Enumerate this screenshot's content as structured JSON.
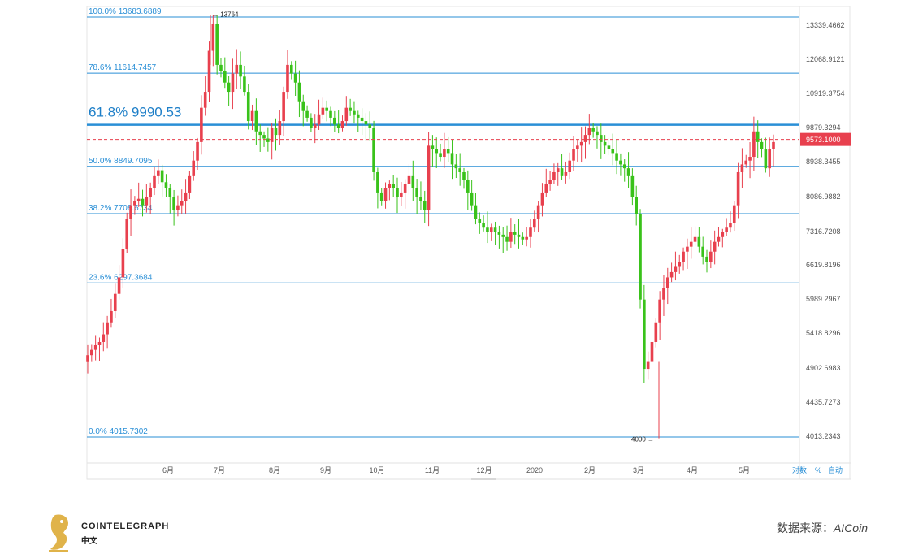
{
  "chart_data": {
    "type": "candlestick",
    "x_labels": [
      "6月",
      "7月",
      "8月",
      "9月",
      "10月",
      "11月",
      "12月",
      "2020",
      "2月",
      "3月",
      "4月",
      "5月"
    ],
    "y_ticks": [
      "13339.4662",
      "12068.9121",
      "10919.3754",
      "9879.3294",
      "8938.3455",
      "8086.9882",
      "7316.7208",
      "6619.8196",
      "5989.2967",
      "5418.8296",
      "4902.6983",
      "4435.7273",
      "4013.2343"
    ],
    "ylim": [
      3800,
      14500
    ],
    "current_price": "9573.1000",
    "current_price_value": 9573.1,
    "fib_levels": [
      {
        "label": "100.0% 13683.6889",
        "value": 13683.6889
      },
      {
        "label": "78.6% 11614.7457",
        "value": 11614.7457
      },
      {
        "label": "61.8% 9990.53",
        "value": 9990.53,
        "highlight": true
      },
      {
        "label": "50.0% 8849.7095",
        "value": 8849.7095
      },
      {
        "label": "38.2% 7708.6734",
        "value": 7708.6734
      },
      {
        "label": "23.6% 6297.3684",
        "value": 6297.3684
      },
      {
        "label": "0.0% 4015.7302",
        "value": 4015.7302
      }
    ],
    "annotations": [
      {
        "text": "← 13764",
        "value": 13764
      },
      {
        "text": "4000 →",
        "value": 4000
      }
    ],
    "closes": [
      5100,
      5180,
      5250,
      5300,
      5420,
      5600,
      5800,
      6100,
      6400,
      6950,
      7600,
      7900,
      8000,
      8050,
      7900,
      8100,
      8300,
      8600,
      8750,
      8450,
      8300,
      8100,
      7800,
      7900,
      8000,
      8200,
      8600,
      9000,
      9500,
      10500,
      11000,
      12400,
      13400,
      11900,
      11700,
      11300,
      11000,
      11600,
      11900,
      11500,
      11000,
      10100,
      10400,
      9800,
      9700,
      9600,
      9500,
      9900,
      9700,
      10100,
      11000,
      11900,
      11600,
      11300,
      10700,
      10400,
      10200,
      9900,
      10000,
      10300,
      10500,
      10400,
      10200,
      10000,
      9900,
      10100,
      10500,
      10400,
      10300,
      10200,
      10100,
      10000,
      9900,
      8700,
      8200,
      8000,
      8300,
      8400,
      8300,
      8100,
      8200,
      8400,
      8600,
      8300,
      8100,
      8000,
      7800,
      9400,
      9300,
      9200,
      9100,
      9300,
      9200,
      8900,
      8800,
      8700,
      8500,
      8200,
      7900,
      7600,
      7500,
      7400,
      7300,
      7400,
      7300,
      7250,
      7200,
      7100,
      7300,
      7250,
      7200,
      7150,
      7200,
      7400,
      7600,
      7900,
      8200,
      8400,
      8500,
      8700,
      8800,
      8600,
      8700,
      9000,
      9300,
      9400,
      9500,
      9700,
      9900,
      9800,
      9700,
      9500,
      9400,
      9300,
      9200,
      9000,
      8900,
      8800,
      8600,
      8100,
      7700,
      6000,
      4900,
      5000,
      5300,
      5600,
      6000,
      6200,
      6400,
      6500,
      6600,
      6700,
      6900,
      7000,
      7100,
      7200,
      7000,
      6800,
      6700,
      6900,
      7100,
      7200,
      7300,
      7400,
      7500,
      7900,
      8700,
      8900,
      9000,
      9100,
      9800,
      9500,
      9300,
      8800,
      9300,
      9500
    ],
    "up_color": "#e8404e",
    "down_color": "#39c21a",
    "fib_color": "#2a8fd6"
  },
  "controls": {
    "log": "对数",
    "pct": "%",
    "auto": "自动"
  },
  "footer": {
    "logo_title": "COINTELEGRAPH",
    "logo_sub": "中文",
    "source_prefix": "数据来源：",
    "source_name": "AICoin"
  }
}
